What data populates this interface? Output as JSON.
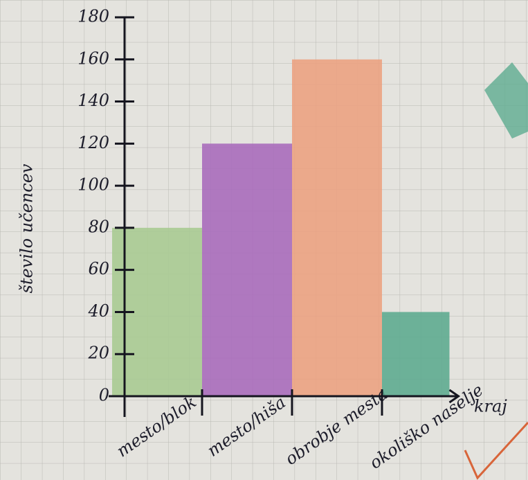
{
  "chart_data": {
    "type": "bar",
    "ylabel": "število učencev",
    "xlabel": "kraj",
    "categories": [
      "mesto/blok",
      "mesto/hiša",
      "obrobje mesta",
      "okoliško naselje"
    ],
    "values": [
      80,
      120,
      160,
      40
    ],
    "colors": [
      "#a8ca92",
      "#a96bbb",
      "#eba282",
      "#5eab90"
    ],
    "ylim": [
      0,
      180
    ],
    "yticks": [
      0,
      20,
      40,
      60,
      80,
      100,
      120,
      140,
      160,
      180
    ]
  }
}
